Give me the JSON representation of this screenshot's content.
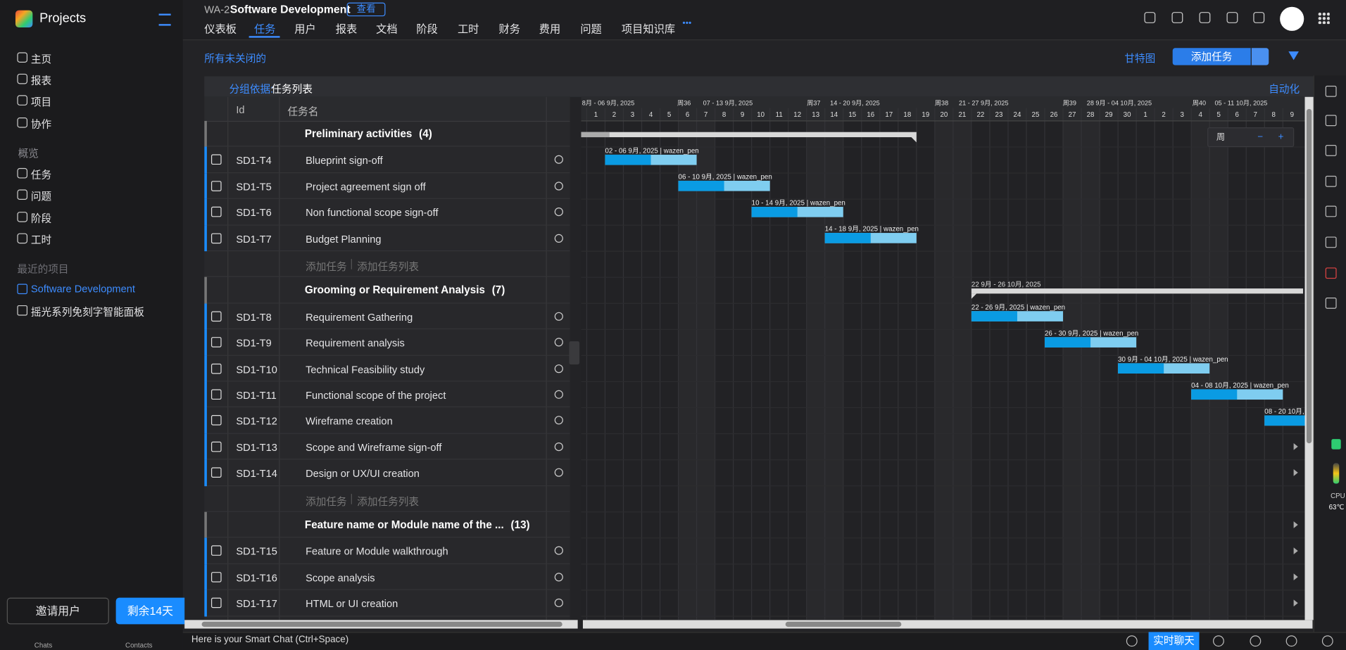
{
  "sidebar": {
    "brand": "Projects",
    "nav": [
      "主页",
      "报表",
      "项目",
      "协作"
    ],
    "section": "概览",
    "section_items": [
      "任务",
      "问题",
      "阶段",
      "工时"
    ],
    "recent_label": "最近的项目",
    "recent": [
      "Software Development",
      "摇光系列免刻字智能面板"
    ],
    "invite": "邀请用户",
    "trial": "剩余14天",
    "dock": [
      "Chats",
      "Contacts"
    ]
  },
  "header": {
    "code": "WA-2",
    "project": "Software Development",
    "view": "查看",
    "tabs": [
      "仪表板",
      "任务",
      "用户",
      "报表",
      "文档",
      "阶段",
      "工时",
      "财务",
      "费用",
      "问题",
      "项目知识库"
    ],
    "more": "•••"
  },
  "toolbar": {
    "filter": "所有未关闭的",
    "view_mode": "甘特图",
    "add_task": "添加任务"
  },
  "grouping": {
    "label": "分组依据:",
    "value": "任务列表",
    "automation": "自动化"
  },
  "table": {
    "columns": [
      "Id",
      "任务名"
    ],
    "add_task": "添加任务",
    "add_list": "添加任务列表",
    "groups": [
      {
        "name": "Preliminary activities",
        "count": "(4)",
        "tasks": [
          {
            "id": "SD1-T4",
            "name": "Blueprint sign-off"
          },
          {
            "id": "SD1-T5",
            "name": "Project agreement sign off"
          },
          {
            "id": "SD1-T6",
            "name": "Non functional scope sign-off"
          },
          {
            "id": "SD1-T7",
            "name": "Budget Planning"
          }
        ]
      },
      {
        "name": "Grooming or Requirement Analysis",
        "count": "(7)",
        "tasks": [
          {
            "id": "SD1-T8",
            "name": "Requirement Gathering"
          },
          {
            "id": "SD1-T9",
            "name": "Requirement analysis"
          },
          {
            "id": "SD1-T10",
            "name": "Technical Feasibility study"
          },
          {
            "id": "SD1-T11",
            "name": "Functional scope of the project"
          },
          {
            "id": "SD1-T12",
            "name": "Wireframe creation"
          },
          {
            "id": "SD1-T13",
            "name": "Scope and Wireframe sign-off"
          },
          {
            "id": "SD1-T14",
            "name": "Design or UX/UI creation"
          }
        ]
      },
      {
        "name": "Feature name or Module name of the ...",
        "count": "(13)",
        "tasks": [
          {
            "id": "SD1-T15",
            "name": "Feature or Module walkthrough"
          },
          {
            "id": "SD1-T16",
            "name": "Scope analysis"
          },
          {
            "id": "SD1-T17",
            "name": "HTML or UI creation"
          }
        ]
      }
    ]
  },
  "gantt": {
    "weeks": [
      "8月 - 06 9月, 2025",
      "周36",
      "07 - 13 9月, 2025",
      "周37",
      "14 - 20 9月, 2025",
      "周38",
      "21 - 27 9月, 2025",
      "周39",
      "28 9月 - 04 10月, 2025",
      "周40",
      "05 - 11 10月, 2025"
    ],
    "days": [
      1,
      2,
      3,
      4,
      5,
      6,
      7,
      8,
      9,
      10,
      11,
      12,
      13,
      14,
      15,
      16,
      17,
      18,
      19,
      20,
      21,
      22,
      23,
      24,
      25,
      26,
      27,
      28,
      29,
      30,
      1,
      2,
      3,
      4,
      5,
      6,
      7,
      8,
      9
    ],
    "summary_label": "22 9月 - 26 10月, 2025",
    "bars": [
      "02 - 06 9月, 2025 | wazen_pen",
      "06 - 10 9月, 2025 | wazen_pen",
      "10 - 14 9月, 2025 | wazen_pen",
      "14 - 18 9月, 2025 | wazen_pen",
      "22 - 26 9月, 2025 | wazen_pen",
      "26 - 30 9月, 2025 | wazen_pen",
      "30 9月 - 04 10月, 2025 | wazen_pen",
      "04 - 08 10月, 2025 | wazen_pen",
      "08 - 20 10月,"
    ],
    "zoom": {
      "unit": "周",
      "minus": "−",
      "plus": "+"
    }
  },
  "status": {
    "smart_chat": "Here is your Smart Chat (Ctrl+Space)",
    "live_chat": "实时聊天",
    "cpu": "CPU",
    "temp": "63℃"
  }
}
